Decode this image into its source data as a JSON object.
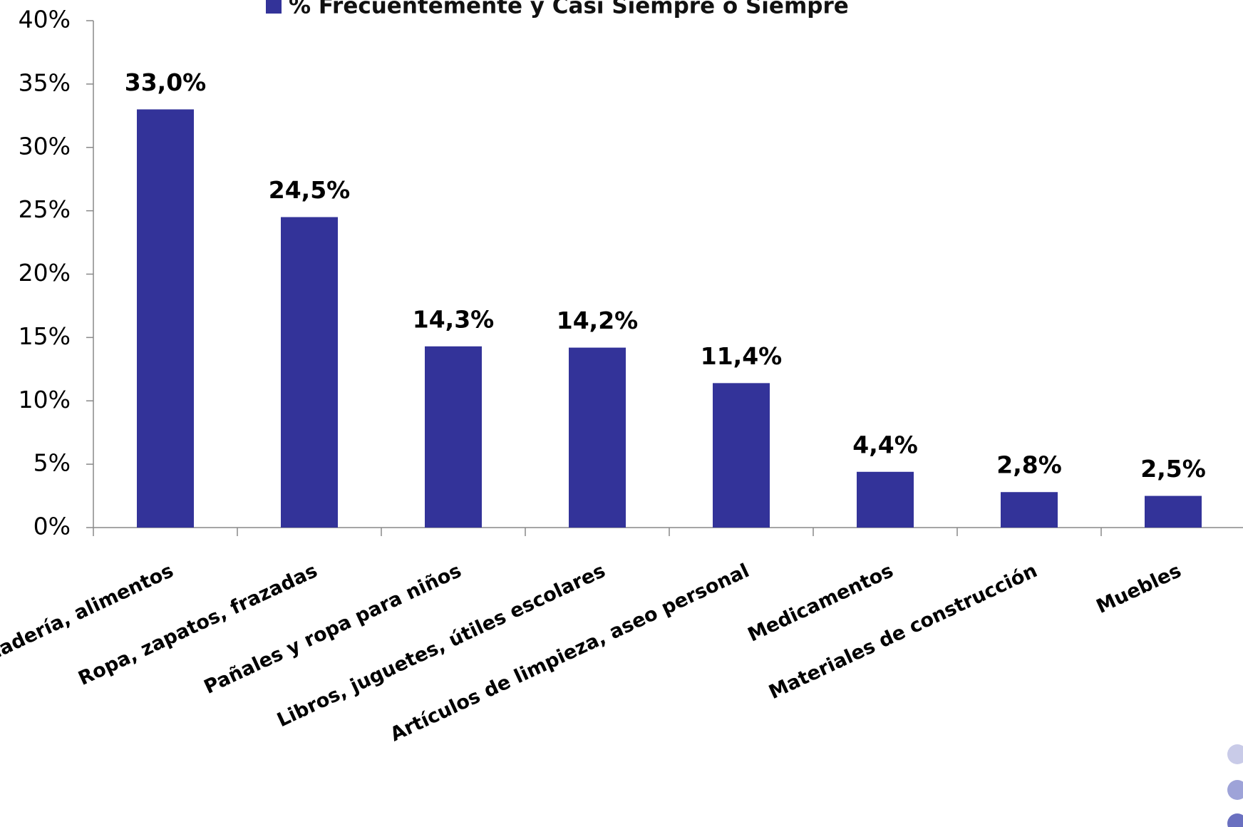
{
  "chart_data": {
    "type": "bar",
    "categories": [
      "Mercadería, alimentos",
      "Ropa, zapatos, frazadas",
      "Pañales y ropa para niños",
      "Libros, juguetes, útiles escolares",
      "Artículos de limpieza, aseo personal",
      "Medicamentos",
      "Materiales de construcción",
      "Muebles"
    ],
    "series": [
      {
        "name": "% Frecuentemente y Casi Siempre o Siempre",
        "color": "#333399",
        "values": [
          33.0,
          24.5,
          14.3,
          14.2,
          11.4,
          4.4,
          2.8,
          2.5
        ],
        "value_labels": [
          "33,0%",
          "24,5%",
          "14,3%",
          "14,2%",
          "11,4%",
          "4,4%",
          "2,8%",
          "2,5%"
        ]
      }
    ],
    "ylim": [
      0,
      40
    ],
    "yticks": [
      {
        "value": 0,
        "label": "0%"
      },
      {
        "value": 5,
        "label": "5%"
      },
      {
        "value": 10,
        "label": "10%"
      },
      {
        "value": 15,
        "label": "15%"
      },
      {
        "value": 20,
        "label": "20%"
      },
      {
        "value": 25,
        "label": "25%"
      },
      {
        "value": 30,
        "label": "30%"
      },
      {
        "value": 35,
        "label": "35%"
      },
      {
        "value": 40,
        "label": "40%"
      }
    ],
    "grid": false,
    "legend": "top"
  }
}
